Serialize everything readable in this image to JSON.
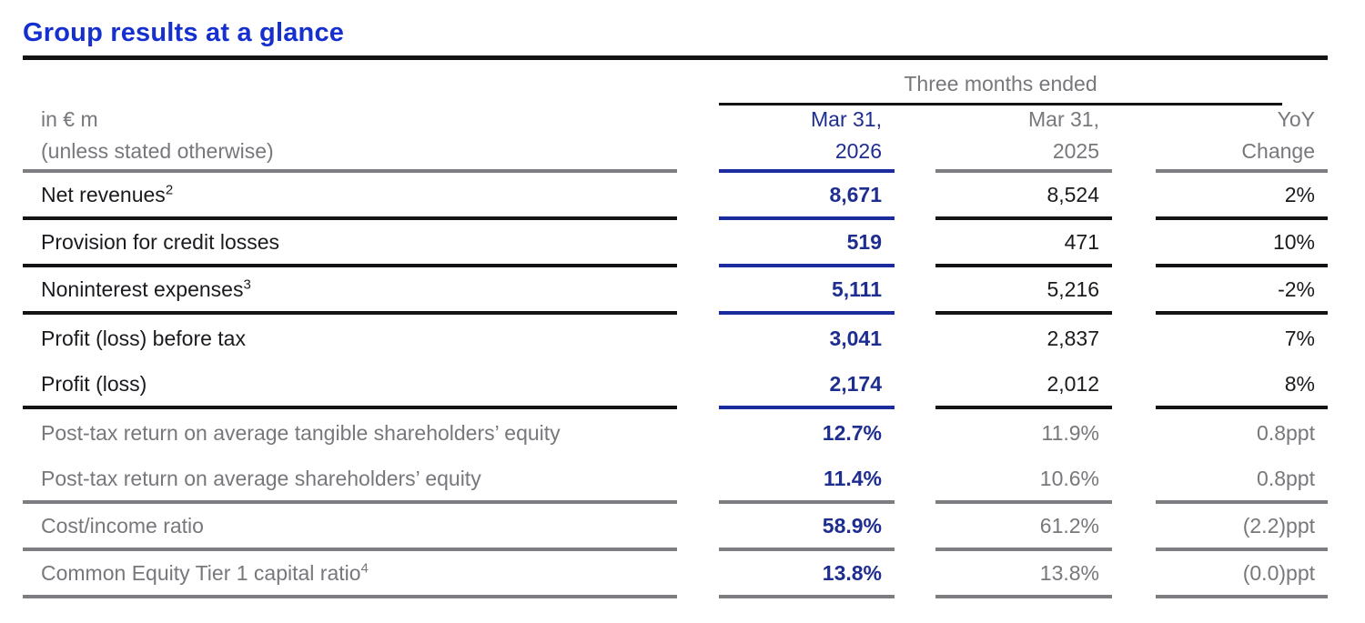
{
  "title": "Group results at a glance",
  "colors": {
    "title_blue": "#1530cf",
    "accent_text": "#1e2d90",
    "accent_line": "#1c2c9e",
    "black_text": "#1b1b1f",
    "gray_text": "#77777c",
    "black_line": "#131316",
    "gray_line": "#7d7d82",
    "bg": "#ffffff"
  },
  "table": {
    "group_header": "Three months ended",
    "col_headers": {
      "label_line1": "in € m",
      "label_line2": "(unless stated otherwise)",
      "col2026_line1": "Mar 31,",
      "col2026_line2": "2026",
      "col2025_line1": "Mar 31,",
      "col2025_line2": "2025",
      "yoy_line1": "YoY",
      "yoy_line2": "Change"
    },
    "rows": [
      {
        "label": "Net revenues",
        "sup": "2",
        "v2026": "8,671",
        "v2025": "8,524",
        "yoy": "2%"
      },
      {
        "label": "Provision for credit losses",
        "sup": "",
        "v2026": "519",
        "v2025": "471",
        "yoy": "10%"
      },
      {
        "label": "Noninterest expenses",
        "sup": "3",
        "v2026": "5,111",
        "v2025": "5,216",
        "yoy": "-2%"
      },
      {
        "label": "Profit (loss) before tax",
        "sup": "",
        "v2026": "3,041",
        "v2025": "2,837",
        "yoy": "7%"
      },
      {
        "label": "Profit (loss)",
        "sup": "",
        "v2026": "2,174",
        "v2025": "2,012",
        "yoy": "8%"
      },
      {
        "label": "Post-tax return on average tangible shareholders’ equity",
        "sup": "",
        "v2026": "12.7%",
        "v2025": "11.9%",
        "yoy": "0.8ppt"
      },
      {
        "label": "Post-tax return on average shareholders’ equity",
        "sup": "",
        "v2026": "11.4%",
        "v2025": "10.6%",
        "yoy": "0.8ppt"
      },
      {
        "label": "Cost/income ratio",
        "sup": "",
        "v2026": "58.9%",
        "v2025": "61.2%",
        "yoy": "(2.2)ppt"
      },
      {
        "label": "Common Equity Tier 1 capital ratio",
        "sup": "4",
        "v2026": "13.8%",
        "v2025": "13.8%",
        "yoy": "(0.0)ppt"
      }
    ]
  }
}
